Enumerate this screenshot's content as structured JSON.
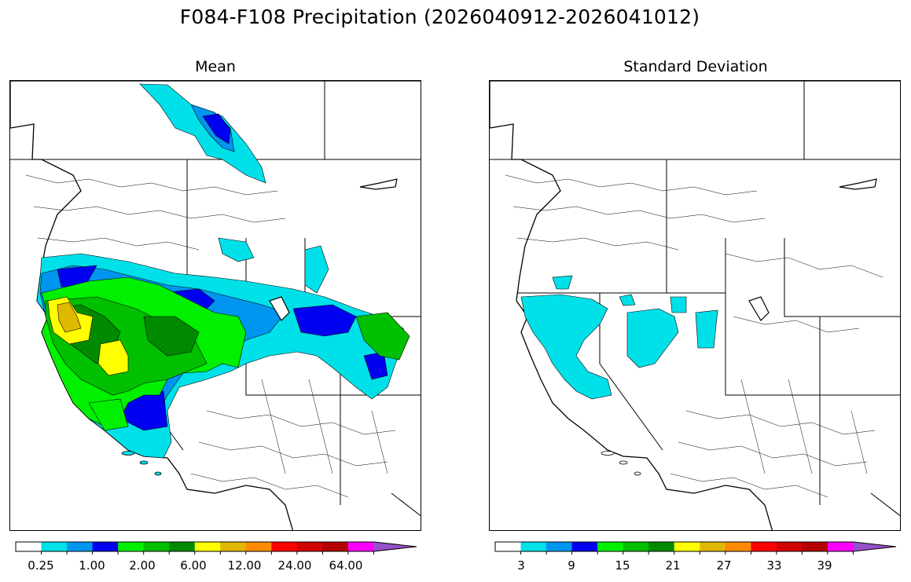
{
  "figure": {
    "title": "F084-F108 Precipitation (2026040912-2026041012)"
  },
  "panels": [
    {
      "title": "Mean",
      "colorbar": {
        "colors": [
          "#ffffff",
          "#00e0e8",
          "#0096f0",
          "#0000f0",
          "#00f000",
          "#00c000",
          "#008a00",
          "#ffff00",
          "#e0b800",
          "#ff8a00",
          "#ff0000",
          "#d20000",
          "#b40000",
          "#ff00ff",
          "#9650c8"
        ],
        "extend": "max",
        "tick_labels": [
          "0.25",
          "1.00",
          "2.00",
          "6.00",
          "12.00",
          "24.00",
          "64.00"
        ]
      }
    },
    {
      "title": "Standard Deviation",
      "colorbar": {
        "colors": [
          "#ffffff",
          "#00e0e8",
          "#0096f0",
          "#0000f0",
          "#00f000",
          "#00c000",
          "#008a00",
          "#ffff00",
          "#e0b800",
          "#ff8a00",
          "#ff0000",
          "#d20000",
          "#b40000",
          "#ff00ff",
          "#9650c8"
        ],
        "extend": "max",
        "tick_labels": [
          "3",
          "9",
          "15",
          "21",
          "27",
          "33",
          "39"
        ]
      }
    }
  ]
}
